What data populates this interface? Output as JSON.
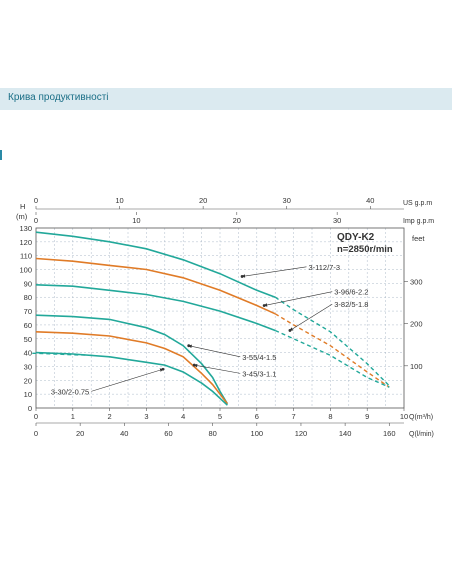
{
  "header": {
    "title": "Крива продуктивності"
  },
  "chart_data": {
    "type": "line",
    "title": "",
    "model": "QDY-K2",
    "speed": "n=2850r/min",
    "y_left": {
      "label_top": "H",
      "unit": "(m)",
      "range": [
        0,
        130
      ],
      "ticks": [
        0,
        10,
        20,
        30,
        40,
        50,
        60,
        70,
        80,
        90,
        100,
        110,
        120,
        130
      ]
    },
    "y_right": {
      "label": "feet",
      "ticks": [
        100,
        200,
        300
      ],
      "ticks_m": [
        30.48,
        60.96,
        91.44
      ]
    },
    "x_q_m3h": {
      "label": "Q(m³/h)",
      "range": [
        0,
        10
      ],
      "ticks": [
        0,
        1,
        2,
        3,
        4,
        5,
        6,
        7,
        8,
        9,
        10
      ]
    },
    "x_q_lmin": {
      "label": "Q(l/min)",
      "ticks": [
        0,
        20,
        40,
        60,
        80,
        100,
        120,
        140,
        160
      ],
      "ticks_m3h": [
        0,
        1.2,
        2.4,
        3.6,
        4.8,
        6,
        7.2,
        8.4,
        9.6
      ]
    },
    "x_us_gpm": {
      "label": "US g.p.m",
      "ticks": [
        0,
        10,
        20,
        30,
        40
      ],
      "ticks_m3h": [
        0,
        2.271,
        4.542,
        6.813,
        9.085
      ]
    },
    "x_imp_gpm": {
      "label": "Imp g.p.m",
      "ticks": [
        0,
        10,
        20,
        30
      ],
      "ticks_m3h": [
        0,
        2.728,
        5.456,
        8.184
      ]
    },
    "series": [
      {
        "name": "3-112/7-3",
        "color": "#22a89a",
        "x": [
          0,
          1,
          2,
          3,
          4,
          5,
          6,
          6.5
        ],
        "y": [
          127,
          124,
          120,
          115,
          107,
          97,
          85,
          80
        ],
        "x_dashed": [
          6.5,
          7,
          8,
          9,
          9.6
        ],
        "y_dashed": [
          80,
          71,
          55,
          32,
          16
        ],
        "label_at": [
          5.6,
          95
        ],
        "label_pos": [
          7.35,
          102
        ]
      },
      {
        "name": "3-96/6-2.2",
        "color": "#e07b27",
        "x": [
          0,
          1,
          2,
          3,
          4,
          5,
          6,
          6.5
        ],
        "y": [
          108,
          106,
          103,
          100,
          94,
          85,
          74,
          68
        ],
        "x_dashed": [
          6.5,
          7,
          8,
          9,
          9.6
        ],
        "y_dashed": [
          68,
          60,
          45,
          26,
          15
        ],
        "label_at": [
          6.2,
          74
        ],
        "label_pos": [
          8.05,
          84
        ]
      },
      {
        "name": "3-82/5-1.8",
        "color": "#22a89a",
        "x": [
          0,
          1,
          2,
          3,
          4,
          5,
          6,
          6.5
        ],
        "y": [
          89,
          88,
          85,
          82,
          77,
          70,
          61,
          56
        ],
        "x_dashed": [
          6.5,
          7,
          8,
          9,
          9.6
        ],
        "y_dashed": [
          56,
          50,
          38,
          22,
          15
        ],
        "label_at": [
          6.9,
          56
        ],
        "label_pos": [
          8.05,
          75
        ]
      },
      {
        "name": "3-55/4-1.5",
        "color": "#22a89a",
        "x": [
          0,
          1,
          2,
          3,
          3.5,
          4,
          4.5,
          4.8,
          5.0,
          5.2
        ],
        "y": [
          67,
          66,
          64,
          58,
          53,
          45,
          32,
          22,
          12,
          3
        ],
        "x_dashed": [],
        "y_dashed": [],
        "label_at": [
          4.15,
          45
        ],
        "label_pos": [
          5.55,
          37
        ]
      },
      {
        "name": "3-45/3-1.1",
        "color": "#e07b27",
        "x": [
          0,
          1,
          2,
          3,
          3.5,
          4,
          4.5,
          4.8,
          5.0,
          5.2
        ],
        "y": [
          55,
          54,
          52,
          47,
          43,
          37,
          25,
          17,
          10,
          3
        ],
        "x_dashed": [],
        "y_dashed": [],
        "label_at": [
          4.3,
          31
        ],
        "label_pos": [
          5.55,
          25
        ]
      },
      {
        "name": "3-30/2-0.75",
        "color": "#22a89a",
        "x": [
          0,
          1,
          2,
          3,
          3.5,
          4,
          4.5,
          4.8,
          5.0,
          5.2
        ],
        "y": [
          40,
          39,
          37,
          33,
          31,
          26,
          18,
          12,
          7,
          2
        ],
        "x_dashed": [
          -0.1,
          0,
          0.5,
          1,
          1.6
        ],
        "y_dashed": [
          39.5,
          39.5,
          39,
          38.5,
          38
        ],
        "label_at": [
          3.45,
          28
        ],
        "label_pos": [
          1.5,
          12
        ]
      }
    ]
  }
}
